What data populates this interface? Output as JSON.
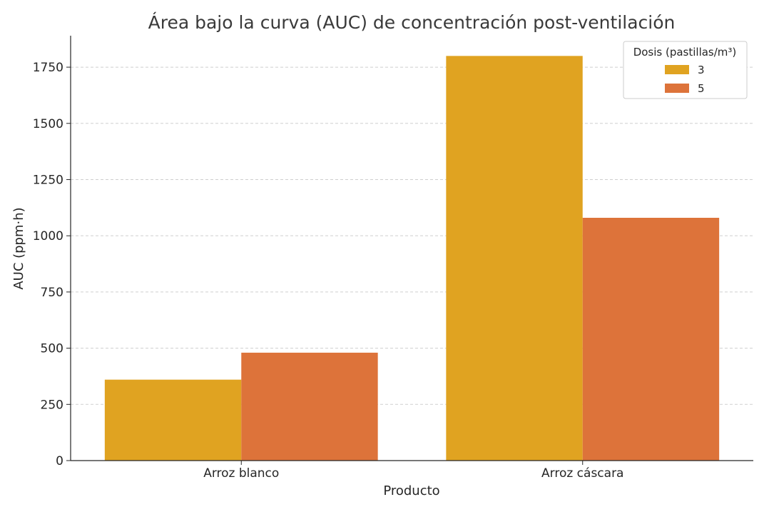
{
  "chart_data": {
    "type": "bar",
    "title": "Área bajo la curva (AUC) de concentración post-ventilación",
    "xlabel": "Producto",
    "ylabel": "AUC (ppm·h)",
    "categories": [
      "Arroz blanco",
      "Arroz cáscara"
    ],
    "series": [
      {
        "name": "3",
        "values": [
          360,
          1800
        ],
        "color": "#E0A321"
      },
      {
        "name": "5",
        "values": [
          480,
          1080
        ],
        "color": "#DD733A"
      }
    ],
    "ylim": [
      0,
      1890
    ],
    "yticks": [
      0,
      250,
      500,
      750,
      1000,
      1250,
      1500,
      1750
    ],
    "ytick_labels": [
      "0",
      "250",
      "500",
      "750",
      "1000",
      "1250",
      "1500",
      "1750"
    ],
    "grid": "horizontal-dashed",
    "legend": {
      "title": "Dosis (pastillas/m³)",
      "placement": "top-right"
    }
  }
}
